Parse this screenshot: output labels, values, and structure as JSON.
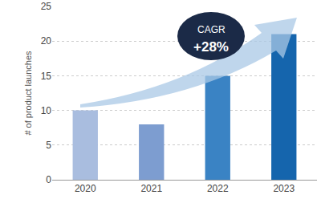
{
  "chart_data": {
    "type": "bar",
    "y_label": "# of product launches",
    "categories": [
      "2020",
      "2021",
      "2022",
      "2023"
    ],
    "values": [
      10,
      8,
      15,
      21
    ],
    "colors": [
      "#a9bddf",
      "#7d9dd0",
      "#3a83c4",
      "#1565ad"
    ],
    "ylim": [
      0,
      25
    ],
    "yticks": [
      0,
      5,
      10,
      15,
      20,
      25
    ],
    "grid": true,
    "annotations": [
      "CAGR",
      "+28%"
    ]
  }
}
